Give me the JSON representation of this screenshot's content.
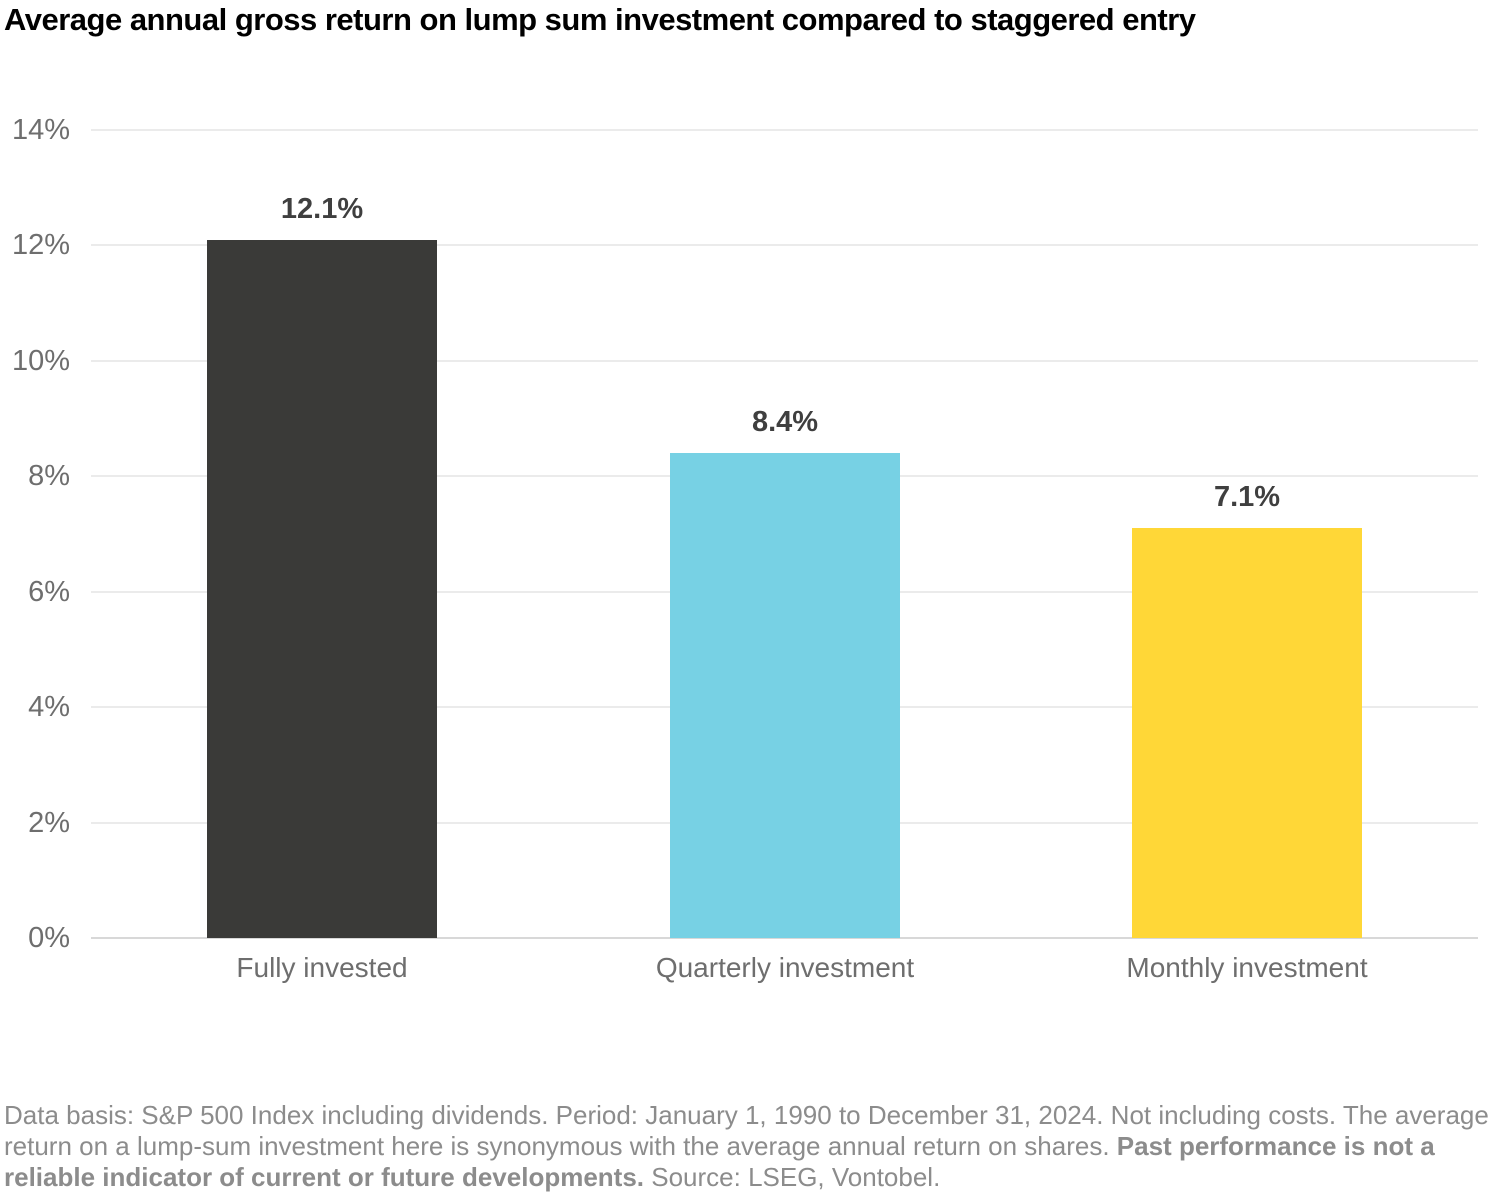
{
  "title": "Average annual gross return on lump sum investment compared to staggered entry",
  "chart_data": {
    "type": "bar",
    "title": "Average annual gross return on lump sum investment compared to staggered entry",
    "categories": [
      "Fully invested",
      "Quarterly investment",
      "Monthly investment"
    ],
    "values": [
      12.1,
      8.4,
      7.1
    ],
    "value_labels": [
      "12.1%",
      "8.4%",
      "7.1%"
    ],
    "bar_colors": [
      "#3a3a38",
      "#77d1e4",
      "#ffd737"
    ],
    "xlabel": "",
    "ylabel": "",
    "ylim": [
      0,
      14
    ],
    "yticks": [
      0,
      2,
      4,
      6,
      8,
      10,
      12,
      14
    ],
    "ytick_labels": [
      "0%",
      "2%",
      "4%",
      "6%",
      "8%",
      "10%",
      "12%",
      "14%"
    ],
    "grid": "horizontal",
    "legend": "none"
  },
  "footnote": {
    "part1": "Data basis: S&P 500 Index including dividends. Period: January 1, 1990 to December 31, 2024. Not including costs. The average return on a lump-sum investment here is synonymous with the average annual return on shares. ",
    "bold": "Past performance is not a reliable indicator of current or future developments.",
    "part2": " Source: LSEG, Vontobel."
  },
  "colors": {
    "title_text": "#000000",
    "value_label_text": "#3f3f3f",
    "axis_label_text": "#6e6e6e",
    "gridline": "#ebebeb",
    "axis_line": "#d8d8d8",
    "footnote_text": "#8c8c8c",
    "background": "#ffffff"
  }
}
